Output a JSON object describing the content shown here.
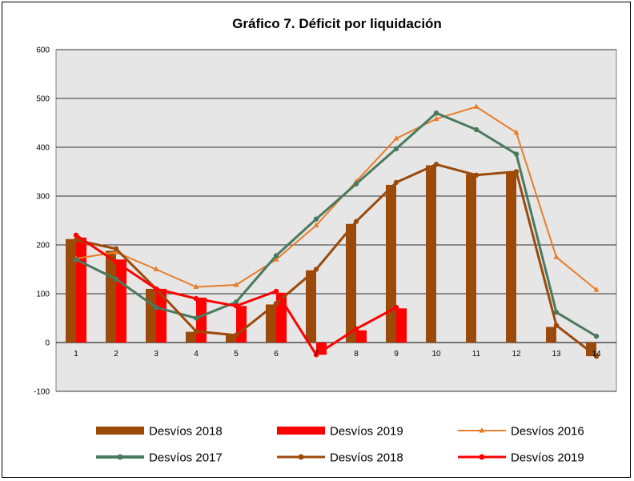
{
  "chart_data": {
    "type": "bar",
    "title": "Gráfico 7. Déficit por liquidación",
    "xlabel": "",
    "ylabel": "",
    "categories": [
      "1",
      "2",
      "3",
      "4",
      "5",
      "6",
      "7",
      "8",
      "9",
      "10",
      "11",
      "12",
      "13",
      "14"
    ],
    "ylim": [
      -100,
      600
    ],
    "yticks": [
      -100,
      0,
      100,
      200,
      300,
      400,
      500,
      600
    ],
    "ytick_labels": [
      "-100",
      "0",
      "100",
      "200",
      "300",
      "400",
      "500",
      "600"
    ],
    "grid": true,
    "legend_position": "bottom",
    "plot_background": "#e6e6e6",
    "bar_series": [
      {
        "name": "Desvíos 2018",
        "color": "#9c4a0a",
        "values": [
          212,
          188,
          110,
          22,
          15,
          78,
          148,
          243,
          323,
          363,
          345,
          350,
          32,
          -28
        ]
      },
      {
        "name": "Desvíos 2019",
        "color": "#ff0000",
        "values": [
          215,
          170,
          110,
          92,
          75,
          102,
          -25,
          25,
          70,
          null,
          null,
          null,
          null,
          null
        ]
      }
    ],
    "line_series": [
      {
        "name": "Desvíos 2016",
        "color": "#e87d2a",
        "marker": "triangle",
        "values": [
          172,
          185,
          150,
          114,
          118,
          170,
          240,
          330,
          418,
          458,
          483,
          430,
          175,
          108
        ]
      },
      {
        "name": "Desvíos 2017",
        "color": "#4a7a5e",
        "marker": "circle",
        "values": [
          170,
          130,
          72,
          50,
          83,
          178,
          253,
          325,
          397,
          470,
          436,
          386,
          62,
          13
        ]
      },
      {
        "name": "Desvíos 2018",
        "color": "#9c4a0a",
        "marker": "circle",
        "values": [
          210,
          192,
          110,
          23,
          15,
          80,
          150,
          248,
          328,
          365,
          343,
          350,
          35,
          -28
        ]
      },
      {
        "name": "Desvíos 2019",
        "color": "#ff0000",
        "marker": "circle",
        "values": [
          220,
          165,
          110,
          90,
          75,
          105,
          -25,
          28,
          72,
          null,
          null,
          null,
          null,
          null
        ]
      }
    ]
  }
}
